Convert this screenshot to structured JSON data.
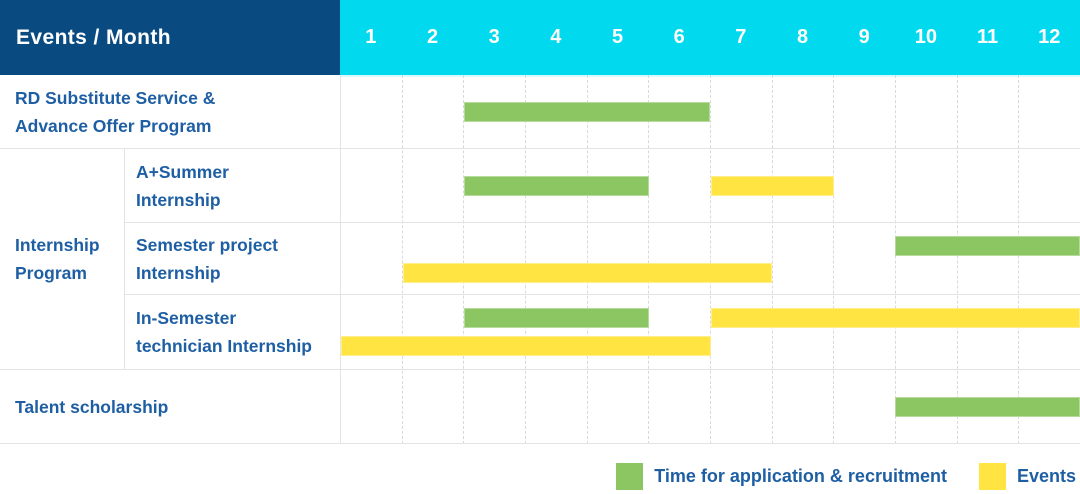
{
  "header": {
    "title": "Events / Month",
    "months": [
      "1",
      "2",
      "3",
      "4",
      "5",
      "6",
      "7",
      "8",
      "9",
      "10",
      "11",
      "12"
    ]
  },
  "colors": {
    "navy": "#094b80",
    "cyan": "#00d9ee",
    "green": "#8cc663",
    "yellow": "#ffe442",
    "label_blue": "#1e5fa4",
    "grid": "#e4e4e4"
  },
  "chart_data": {
    "type": "bar",
    "subtype": "gantt-schedule",
    "x_axis": {
      "label": "Month",
      "ticks": [
        1,
        2,
        3,
        4,
        5,
        6,
        7,
        8,
        9,
        10,
        11,
        12
      ],
      "range": [
        1,
        12
      ],
      "gridlines": "dashed"
    },
    "legend_position": "bottom-right",
    "legend": [
      {
        "name": "Time for application & recruitment",
        "color": "#8cc663"
      },
      {
        "name": "Events",
        "color": "#ffe442"
      }
    ],
    "rows": [
      {
        "group": "",
        "label": "RD Substitute Service & Advance Offer Program",
        "label_lines": [
          "RD Substitute Service &",
          "Advance Offer Program"
        ],
        "bars": [
          {
            "series": "Time for application & recruitment",
            "start_month": 3,
            "end_month": 6,
            "track": "single"
          }
        ]
      },
      {
        "group": "Internship Program",
        "label": "A+Summer Internship",
        "label_lines": [
          "A+Summer",
          "Internship"
        ],
        "bars": [
          {
            "series": "Time for application & recruitment",
            "start_month": 3,
            "end_month": 5,
            "track": "single"
          },
          {
            "series": "Events",
            "start_month": 7,
            "end_month": 8,
            "track": "single"
          }
        ]
      },
      {
        "group": "Internship Program",
        "label": "Semester project Internship",
        "label_lines": [
          "Semester project",
          "Internship"
        ],
        "bars": [
          {
            "series": "Time for application & recruitment",
            "start_month": 10,
            "end_month": 12,
            "track": "top"
          },
          {
            "series": "Events",
            "start_month": 2,
            "end_month": 7,
            "track": "bottom"
          }
        ]
      },
      {
        "group": "Internship Program",
        "label": "In-Semester technician Internship",
        "label_lines": [
          "In-Semester",
          "technician Internship"
        ],
        "bars": [
          {
            "series": "Time for application & recruitment",
            "start_month": 3,
            "end_month": 5,
            "track": "top"
          },
          {
            "series": "Events",
            "start_month": 7,
            "end_month": 12,
            "track": "top"
          },
          {
            "series": "Events",
            "start_month": 1,
            "end_month": 6,
            "track": "bottom"
          }
        ]
      },
      {
        "group": "",
        "label": "Talent scholarship",
        "label_lines": [
          "Talent scholarship"
        ],
        "bars": [
          {
            "series": "Time for application & recruitment",
            "start_month": 10,
            "end_month": 12,
            "track": "single"
          }
        ]
      }
    ],
    "group_label_lines": [
      "Internship",
      "Program"
    ]
  }
}
